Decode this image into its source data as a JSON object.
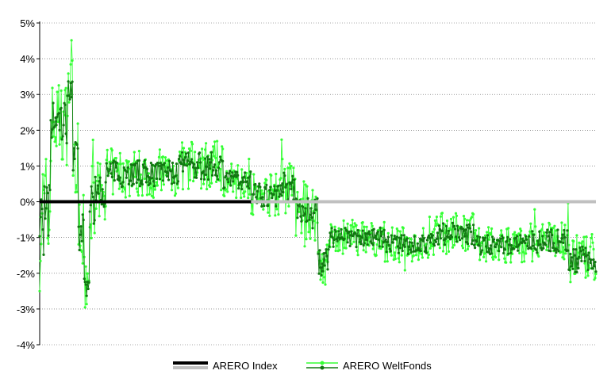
{
  "chart_data": {
    "type": "line",
    "title": "",
    "xlabel": "",
    "ylabel": "",
    "ylim": [
      -4,
      5
    ],
    "yticks": [
      "5%",
      "4%",
      "3%",
      "2%",
      "1%",
      "0%",
      "-1%",
      "-2%",
      "-3%",
      "-4%"
    ],
    "ytick_values": [
      5,
      4,
      3,
      2,
      1,
      0,
      -1,
      -2,
      -3,
      -4
    ],
    "grid": "horizontal dotted",
    "legend_position": "bottom-center",
    "series": [
      {
        "name": "ARERO Index",
        "color": "#000000",
        "color_secondary": "#c0c0c0",
        "style": "thick flat line at zero (black first part, gray second part)",
        "x_fraction_switch": 0.38,
        "values": [
          0,
          0
        ]
      },
      {
        "name": "ARERO WeltFonds",
        "color": "#33ff33",
        "color_secondary": "#117711",
        "style": "line with point markers, daily relative performance",
        "segments": [
          {
            "x_end": 0.02,
            "mean": -0.5,
            "amp": 2.0
          },
          {
            "x_end": 0.05,
            "mean": 2.2,
            "amp": 1.2
          },
          {
            "x_end": 0.06,
            "mean": 3.2,
            "amp": 0.8
          },
          {
            "x_end": 0.07,
            "mean": 1.2,
            "amp": 1.0
          },
          {
            "x_end": 0.08,
            "mean": -1.0,
            "amp": 1.2
          },
          {
            "x_end": 0.09,
            "mean": -2.3,
            "amp": 0.9
          },
          {
            "x_end": 0.1,
            "mean": 0.0,
            "amp": 1.2
          },
          {
            "x_end": 0.12,
            "mean": 0.3,
            "amp": 0.8
          },
          {
            "x_end": 0.25,
            "mean": 0.8,
            "amp": 0.7
          },
          {
            "x_end": 0.33,
            "mean": 1.0,
            "amp": 0.7
          },
          {
            "x_end": 0.38,
            "mean": 0.6,
            "amp": 0.5
          },
          {
            "x_end": 0.43,
            "mean": 0.2,
            "amp": 0.6
          },
          {
            "x_end": 0.46,
            "mean": 0.4,
            "amp": 0.8
          },
          {
            "x_end": 0.5,
            "mean": -0.3,
            "amp": 0.8
          },
          {
            "x_end": 0.52,
            "mean": -1.7,
            "amp": 0.7
          },
          {
            "x_end": 0.62,
            "mean": -1.0,
            "amp": 0.5
          },
          {
            "x_end": 0.7,
            "mean": -1.2,
            "amp": 0.5
          },
          {
            "x_end": 0.78,
            "mean": -0.9,
            "amp": 0.6
          },
          {
            "x_end": 0.88,
            "mean": -1.2,
            "amp": 0.5
          },
          {
            "x_end": 0.95,
            "mean": -1.1,
            "amp": 0.6
          },
          {
            "x_end": 1.0,
            "mean": -1.6,
            "amp": 0.7
          }
        ],
        "min": -3.5,
        "max": 4.9
      }
    ]
  },
  "legend": [
    {
      "label": "ARERO Index",
      "color": "#000000",
      "color_secondary": "#c0c0c0"
    },
    {
      "label": "ARERO WeltFonds",
      "color": "#33ff33",
      "color_secondary": "#117711"
    }
  ]
}
